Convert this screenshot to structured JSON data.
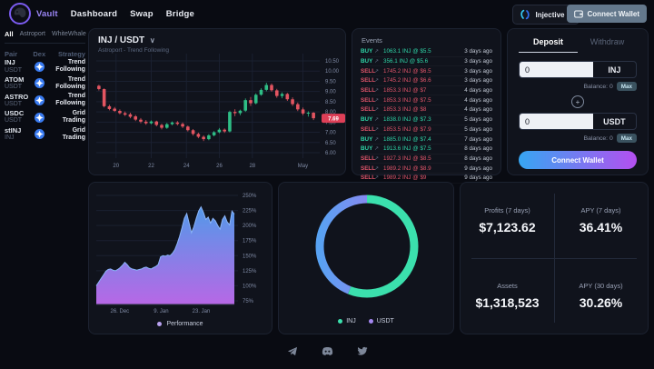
{
  "nav": {
    "items": [
      {
        "label": "Vault",
        "active": true
      },
      {
        "label": "Dashboard",
        "active": false
      },
      {
        "label": "Swap",
        "active": false
      },
      {
        "label": "Bridge",
        "active": false
      }
    ]
  },
  "topbar": {
    "network_label": "Injective",
    "connect_wallet_label": "Connect Wallet"
  },
  "sidebar": {
    "tabs": [
      "All",
      "Astroport",
      "WhiteWhale"
    ],
    "active_tab": "All",
    "columns": [
      "Pair",
      "Dex",
      "Strategy"
    ],
    "rows": [
      {
        "base": "INJ",
        "quote": "USDT",
        "dex": "Astroport",
        "strategy": "Trend Following"
      },
      {
        "base": "ATOM",
        "quote": "USDT",
        "dex": "Astroport",
        "strategy": "Trend Following"
      },
      {
        "base": "ASTRO",
        "quote": "USDT",
        "dex": "Astroport",
        "strategy": "Trend Following"
      },
      {
        "base": "USDC",
        "quote": "USDT",
        "dex": "Astroport",
        "strategy": "Grid Trading"
      },
      {
        "base": "stINJ",
        "quote": "INJ",
        "dex": "Astroport",
        "strategy": "Grid Trading"
      }
    ]
  },
  "events": {
    "title": "Events",
    "rows": [
      {
        "side": "BUY",
        "amount": "1063.1 INJ @ $5.5",
        "time": "3 days ago"
      },
      {
        "side": "BUY",
        "amount": "356.1 INJ @ $5.6",
        "time": "3 days ago"
      },
      {
        "side": "SELL",
        "amount": "1745.2 INJ @ $6.5",
        "time": "3 days ago"
      },
      {
        "side": "SELL",
        "amount": "1745.2 INJ @ $6.6",
        "time": "3 days ago"
      },
      {
        "side": "SELL",
        "amount": "1853.3 INJ @ $7",
        "time": "4 days ago"
      },
      {
        "side": "SELL",
        "amount": "1853.3 INJ @ $7.5",
        "time": "4 days ago"
      },
      {
        "side": "SELL",
        "amount": "1853.3 INJ @ $8",
        "time": "4 days ago"
      },
      {
        "side": "BUY",
        "amount": "1838.0 INJ @ $7.3",
        "time": "5 days ago"
      },
      {
        "side": "SELL",
        "amount": "1853.5 INJ @ $7.9",
        "time": "5 days ago"
      },
      {
        "side": "BUY",
        "amount": "1885.0 INJ @ $7.4",
        "time": "7 days ago"
      },
      {
        "side": "BUY",
        "amount": "1913.6 INJ @ $7.5",
        "time": "8 days ago"
      },
      {
        "side": "SELL",
        "amount": "1927.3 INJ @ $8.5",
        "time": "8 days ago"
      },
      {
        "side": "SELL",
        "amount": "1989.2 INJ @ $8.9",
        "time": "9 days ago"
      },
      {
        "side": "SELL",
        "amount": "1989.2 INJ @ $9",
        "time": "9 days ago"
      }
    ]
  },
  "deposit": {
    "tabs": [
      "Deposit",
      "Withdraw"
    ],
    "active_tab": "Deposit",
    "rows": [
      {
        "value": "0",
        "token": "INJ",
        "balance": "Balance: 0",
        "max": "Max"
      },
      {
        "value": "0",
        "token": "USDT",
        "balance": "Balance: 0",
        "max": "Max"
      }
    ],
    "button_label": "Connect Wallet"
  },
  "stats": {
    "cells": [
      {
        "label": "Profits (7 days)",
        "value": "$7,123.62"
      },
      {
        "label": "APY (7 days)",
        "value": "36.41%"
      },
      {
        "label": "Assets",
        "value": "$1,318,523"
      },
      {
        "label": "APY (30 days)",
        "value": "30.26%"
      }
    ]
  },
  "footer": {
    "icons": [
      "telegram",
      "discord",
      "twitter"
    ]
  },
  "colors": {
    "background": "#090b12",
    "panel": "#10131c",
    "accent_purple": "#9b86f5",
    "buy_teal": "#2fd6a8",
    "sell_red": "#e0556a",
    "candle_up": "#2ebd85",
    "candle_down": "#e35561",
    "price_tag": "#de3f57",
    "gradient_start": "#36a6f2",
    "gradient_end": "#b44ff0",
    "area_top": "#57a0f4",
    "area_bottom": "#c06cf0",
    "donut_inj": "#3be0ad",
    "donut_usdt": "#a487f0"
  },
  "chart_data": [
    {
      "id": "price_chart",
      "type": "candlestick",
      "title": "INJ / USDT",
      "subtitle": "Astroport - Trend Following",
      "ylim": [
        6.0,
        10.5
      ],
      "y_ticks": [
        "10.50",
        "10.00",
        "9.50",
        "9.00",
        "8.50",
        "8.00",
        "7.50",
        "7.00",
        "6.50",
        "6.00"
      ],
      "x_ticks": [
        {
          "label": "20",
          "f": 0.09
        },
        {
          "label": "22",
          "f": 0.25
        },
        {
          "label": "24",
          "f": 0.41
        },
        {
          "label": "26",
          "f": 0.56
        },
        {
          "label": "28",
          "f": 0.71
        },
        {
          "label": "May",
          "f": 0.94
        }
      ],
      "last_price": "7.69",
      "last_price_value": 7.69,
      "up_color": "#2ebd85",
      "down_color": "#e35561",
      "candles": [
        [
          9.28,
          9.33,
          9.05,
          9.12
        ],
        [
          9.12,
          9.15,
          8.22,
          8.28
        ],
        [
          8.28,
          8.35,
          8.08,
          8.14
        ],
        [
          8.16,
          8.24,
          8.0,
          8.05
        ],
        [
          8.05,
          8.12,
          7.88,
          7.94
        ],
        [
          7.94,
          8.02,
          7.8,
          7.86
        ],
        [
          7.88,
          7.96,
          7.69,
          7.76
        ],
        [
          7.78,
          7.85,
          7.55,
          7.62
        ],
        [
          7.62,
          7.7,
          7.44,
          7.52
        ],
        [
          7.52,
          7.6,
          7.37,
          7.44
        ],
        [
          7.44,
          7.58,
          7.39,
          7.53
        ],
        [
          7.53,
          7.57,
          7.29,
          7.36
        ],
        [
          7.36,
          7.42,
          7.14,
          7.22
        ],
        [
          7.22,
          7.46,
          7.17,
          7.4
        ],
        [
          7.4,
          7.53,
          7.34,
          7.48
        ],
        [
          7.48,
          7.55,
          7.34,
          7.41
        ],
        [
          7.41,
          7.48,
          7.21,
          7.28
        ],
        [
          7.28,
          7.33,
          7.04,
          7.1
        ],
        [
          7.1,
          7.16,
          6.84,
          6.92
        ],
        [
          6.92,
          6.98,
          6.71,
          6.78
        ],
        [
          6.78,
          6.85,
          6.57,
          6.66
        ],
        [
          6.66,
          6.91,
          6.61,
          6.85
        ],
        [
          6.85,
          7.06,
          6.8,
          7.0
        ],
        [
          7.0,
          7.21,
          6.95,
          7.13
        ],
        [
          7.13,
          7.19,
          6.97,
          7.04
        ],
        [
          7.04,
          8.06,
          6.99,
          8.0
        ],
        [
          8.0,
          8.13,
          7.79,
          7.94
        ],
        [
          7.94,
          8.11,
          7.84,
          8.06
        ],
        [
          8.06,
          8.66,
          8.0,
          8.58
        ],
        [
          8.58,
          8.73,
          8.29,
          8.42
        ],
        [
          8.42,
          8.91,
          8.37,
          8.84
        ],
        [
          8.84,
          9.16,
          8.79,
          9.08
        ],
        [
          9.08,
          9.43,
          9.01,
          9.32
        ],
        [
          9.32,
          9.39,
          8.99,
          9.06
        ],
        [
          9.06,
          9.13,
          8.69,
          8.78
        ],
        [
          8.78,
          8.96,
          8.67,
          8.88
        ],
        [
          8.88,
          8.93,
          8.54,
          8.62
        ],
        [
          8.62,
          8.71,
          8.29,
          8.38
        ],
        [
          8.38,
          8.46,
          8.04,
          8.12
        ],
        [
          8.12,
          8.21,
          7.84,
          7.92
        ],
        [
          7.92,
          8.03,
          7.77,
          7.96
        ],
        [
          7.96,
          7.99,
          7.6,
          7.69
        ]
      ]
    },
    {
      "id": "performance_chart",
      "type": "area",
      "legend": "Performance",
      "ylim": [
        75,
        250
      ],
      "y_ticks": [
        "250%",
        "225%",
        "200%",
        "175%",
        "150%",
        "125%",
        "100%",
        "75%"
      ],
      "x_ticks": [
        {
          "label": "26. Dec",
          "f": 0.17
        },
        {
          "label": "9. Jan",
          "f": 0.47
        },
        {
          "label": "23. Jan",
          "f": 0.76
        }
      ],
      "values": [
        100,
        106,
        112,
        118,
        124,
        127,
        128,
        126,
        125,
        127,
        130,
        134,
        139,
        135,
        130,
        128,
        127,
        126,
        127,
        128,
        130,
        131,
        129,
        128,
        130,
        132,
        135,
        148,
        150,
        149,
        151,
        150,
        154,
        160,
        170,
        182,
        196,
        212,
        220,
        204,
        188,
        198,
        212,
        224,
        231,
        222,
        210,
        214,
        204,
        212,
        208,
        200,
        194,
        210,
        216,
        206,
        201,
        224,
        219
      ]
    },
    {
      "id": "allocation_chart",
      "type": "donut",
      "slices": [
        {
          "label": "INJ",
          "pct": 56,
          "color": "#3be0ad"
        },
        {
          "label": "USDT",
          "pct": 44,
          "color": "#a487f0",
          "color_start": "#58a2f2",
          "color_end": "#b671f0"
        }
      ]
    }
  ]
}
